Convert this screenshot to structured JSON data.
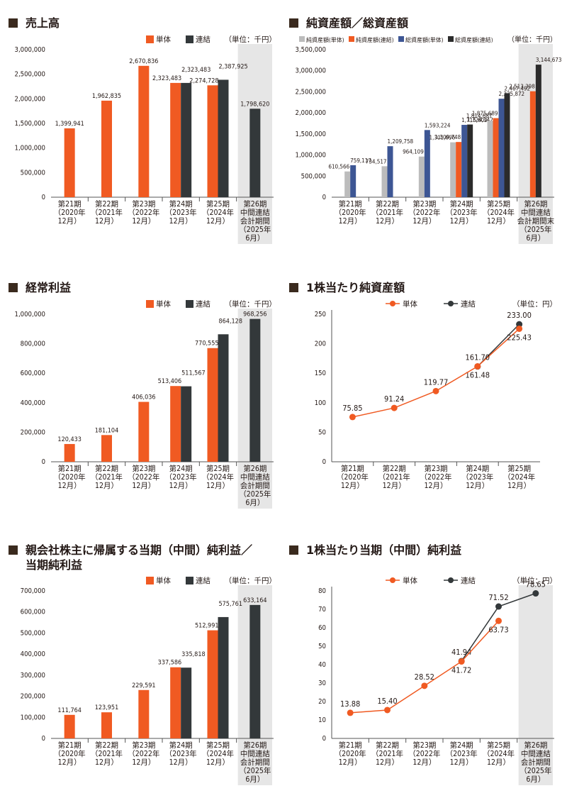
{
  "colors": {
    "tantai": "#f05a22",
    "renketsu": "#33383a",
    "jun_tantai": "#bcbcbc",
    "jun_renketsu": "#f05a22",
    "so_tantai": "#3d5694",
    "so_renketsu": "#2b2b2b",
    "shade": "#e6e6e6"
  },
  "chart_data": [
    {
      "type": "bar",
      "title": "売上高",
      "unit": "（単位：千円）",
      "categories": [
        [
          "第21期",
          "（2020年",
          "12月）"
        ],
        [
          "第22期",
          "（2021年",
          "12月）"
        ],
        [
          "第23期",
          "（2022年",
          "12月）"
        ],
        [
          "第24期",
          "（2023年",
          "12月）"
        ],
        [
          "第25期",
          "（2024年",
          "12月）"
        ],
        [
          "第26期",
          "中間連結",
          "会計期間",
          "（2025年",
          "6月）"
        ]
      ],
      "series": [
        {
          "name": "単体",
          "values": [
            1399941,
            1962835,
            2670836,
            2323483,
            2274728,
            null
          ]
        },
        {
          "name": "連結",
          "values": [
            null,
            null,
            null,
            2323483,
            2387925,
            1798620
          ]
        }
      ],
      "labels": [
        [
          "1,399,941",
          "1,962,835",
          "2,670,836",
          "2,323,483",
          "2,274,728",
          null
        ],
        [
          null,
          null,
          null,
          "2,323,483",
          "2,387,925",
          "1,798,620"
        ]
      ],
      "yticks": [
        "0",
        "500,000",
        "1,000,000",
        "1,500,000",
        "2,000,000",
        "2,500,000",
        "3,000,000"
      ],
      "ylim": [
        0,
        3000000
      ]
    },
    {
      "type": "bar",
      "title": "純資産額／総資産額",
      "unit": "（単位：千円）",
      "categories": [
        [
          "第21期",
          "（2020年",
          "12月）"
        ],
        [
          "第22期",
          "（2021年",
          "12月）"
        ],
        [
          "第23期",
          "（2022年",
          "12月）"
        ],
        [
          "第24期",
          "（2023年",
          "12月）"
        ],
        [
          "第25期",
          "（2024年",
          "12月）"
        ],
        [
          "第26期",
          "中間連結",
          "会計期間末",
          "（2025年",
          "6月）"
        ]
      ],
      "series": [
        {
          "name": "純資産額(単体)",
          "values": [
            610566,
            734517,
            964109,
            1301696,
            1814687,
            null
          ]
        },
        {
          "name": "純資産額(連結)",
          "values": [
            null,
            null,
            null,
            1309748,
            1875689,
            2513398
          ]
        },
        {
          "name": "総資産額(単体)",
          "values": [
            759117,
            1209758,
            1593224,
            1715609,
            2335872,
            null
          ]
        },
        {
          "name": "総資産額(連結)",
          "values": [
            null,
            null,
            null,
            1724142,
            2467492,
            3144673
          ]
        }
      ],
      "labels": [
        [
          "610,566",
          "734,517",
          "964,109",
          "1,301,696",
          "1,814,687",
          null
        ],
        [
          null,
          null,
          null,
          "1,309,748",
          "1,875,689",
          "2,513,398"
        ],
        [
          "759,117",
          "1,209,758",
          "1,593,224",
          "1,715,609",
          "2,335,872",
          null
        ],
        [
          null,
          null,
          null,
          "1,724,142",
          "2,467,492",
          "3,144,673"
        ]
      ],
      "yticks": [
        "0",
        "500,000",
        "1,000,000",
        "1,500,000",
        "2,000,000",
        "2,500,000",
        "3,000,000",
        "3,500,000"
      ],
      "ylim": [
        0,
        3500000
      ]
    },
    {
      "type": "bar",
      "title": "経常利益",
      "unit": "（単位：千円）",
      "categories": [
        [
          "第21期",
          "（2020年",
          "12月）"
        ],
        [
          "第22期",
          "（2021年",
          "12月）"
        ],
        [
          "第23期",
          "（2022年",
          "12月）"
        ],
        [
          "第24期",
          "（2023年",
          "12月）"
        ],
        [
          "第25期",
          "（2024年",
          "12月）"
        ],
        [
          "第26期",
          "中間連結",
          "会計期間",
          "（2025年",
          "6月）"
        ]
      ],
      "series": [
        {
          "name": "単体",
          "values": [
            120433,
            181104,
            406036,
            513406,
            770555,
            null
          ]
        },
        {
          "name": "連結",
          "values": [
            null,
            null,
            null,
            511567,
            864128,
            968256
          ]
        }
      ],
      "labels": [
        [
          "120,433",
          "181,104",
          "406,036",
          "513,406",
          "770,555",
          null
        ],
        [
          null,
          null,
          null,
          "511,567",
          "864,128",
          "968,256"
        ]
      ],
      "yticks": [
        "0",
        "200,000",
        "400,000",
        "600,000",
        "800,000",
        "1,000,000"
      ],
      "ylim": [
        0,
        1000000
      ]
    },
    {
      "type": "line",
      "title": "1株当たり純資産額",
      "unit": "（単位：円）",
      "categories": [
        [
          "第21期",
          "（2020年",
          "12月）"
        ],
        [
          "第22期",
          "（2021年",
          "12月）"
        ],
        [
          "第23期",
          "（2022年",
          "12月）"
        ],
        [
          "第24期",
          "（2023年",
          "12月）"
        ],
        [
          "第25期",
          "（2024年",
          "12月）"
        ]
      ],
      "series": [
        {
          "name": "単体",
          "values": [
            75.85,
            91.24,
            119.77,
            161.7,
            225.43
          ]
        },
        {
          "name": "連結",
          "values": [
            null,
            null,
            null,
            161.48,
            233.0
          ]
        }
      ],
      "labels": [
        [
          "75.85",
          "91.24",
          "119.77",
          "161.70",
          "225.43"
        ],
        [
          null,
          null,
          null,
          "161.48",
          "233.00"
        ]
      ],
      "yticks": [
        "0",
        "50",
        "100",
        "150",
        "200",
        "250"
      ],
      "ylim": [
        0,
        250
      ]
    },
    {
      "type": "bar",
      "title": "親会社株主に帰属する当期（中間）純利益／\n当期純利益",
      "unit": "（単位：千円）",
      "categories": [
        [
          "第21期",
          "（2020年",
          "12月）"
        ],
        [
          "第22期",
          "（2021年",
          "12月）"
        ],
        [
          "第23期",
          "（2022年",
          "12月）"
        ],
        [
          "第24期",
          "（2023年",
          "12月）"
        ],
        [
          "第25期",
          "（2024年",
          "12月）"
        ],
        [
          "第26期",
          "中間連結",
          "会計期間",
          "（2025年",
          "6月）"
        ]
      ],
      "series": [
        {
          "name": "単体",
          "values": [
            111764,
            123951,
            229591,
            337586,
            512991,
            null
          ]
        },
        {
          "name": "連結",
          "values": [
            null,
            null,
            null,
            335818,
            575761,
            633164
          ]
        }
      ],
      "labels": [
        [
          "111,764",
          "123,951",
          "229,591",
          "337,586",
          "512,991",
          null
        ],
        [
          null,
          null,
          null,
          "335,818",
          "575,761",
          "633,164"
        ]
      ],
      "yticks": [
        "0",
        "100,000",
        "200,000",
        "300,000",
        "400,000",
        "500,000",
        "600,000",
        "700,000"
      ],
      "ylim": [
        0,
        700000
      ]
    },
    {
      "type": "line",
      "title": "1株当たり当期（中間）純利益",
      "unit": "（単位：円）",
      "categories": [
        [
          "第21期",
          "（2020年",
          "12月）"
        ],
        [
          "第22期",
          "（2021年",
          "12月）"
        ],
        [
          "第23期",
          "（2022年",
          "12月）"
        ],
        [
          "第24期",
          "（2023年",
          "12月）"
        ],
        [
          "第25期",
          "（2024年",
          "12月）"
        ],
        [
          "第26期",
          "中間連結",
          "会計期間",
          "（2025年",
          "6月）"
        ]
      ],
      "series": [
        {
          "name": "単体",
          "values": [
            13.88,
            15.4,
            28.52,
            41.72,
            63.73,
            null
          ]
        },
        {
          "name": "連結",
          "values": [
            null,
            null,
            null,
            41.94,
            71.52,
            78.65
          ]
        }
      ],
      "labels": [
        [
          "13.88",
          "15.40",
          "28.52",
          "41.72",
          "63.73",
          null
        ],
        [
          null,
          null,
          null,
          "41.94",
          "71.52",
          "78.65"
        ]
      ],
      "yticks": [
        "0",
        "10",
        "20",
        "30",
        "40",
        "50",
        "60",
        "70",
        "80"
      ],
      "ylim": [
        0,
        80
      ]
    }
  ]
}
